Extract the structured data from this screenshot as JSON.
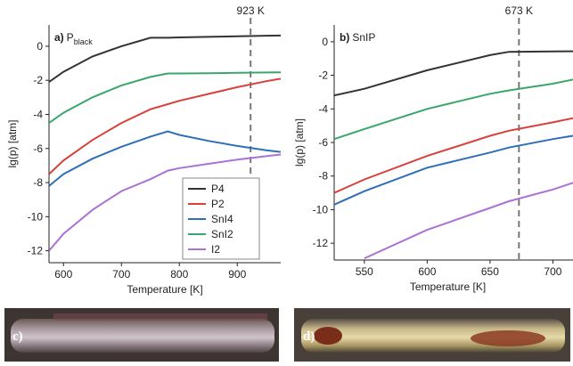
{
  "chart_data": [
    {
      "type": "line",
      "panel_label": "a)",
      "title": "P",
      "title_sub": "black",
      "x": [
        575,
        600,
        650,
        700,
        750,
        780,
        800,
        850,
        900,
        950,
        975
      ],
      "series": [
        {
          "name": "P4",
          "color": "#333333",
          "values": [
            -2.1,
            -1.5,
            -0.6,
            0.0,
            0.5,
            0.5,
            0.52,
            0.55,
            0.58,
            0.62,
            0.63
          ]
        },
        {
          "name": "P2",
          "color": "#d9403a",
          "values": [
            -7.5,
            -6.7,
            -5.5,
            -4.5,
            -3.7,
            -3.4,
            -3.2,
            -2.8,
            -2.4,
            -2.05,
            -1.9
          ]
        },
        {
          "name": "SnI4",
          "color": "#2e6fb7",
          "values": [
            -8.2,
            -7.5,
            -6.6,
            -5.9,
            -5.3,
            -5.0,
            -5.2,
            -5.55,
            -5.85,
            -6.1,
            -6.2
          ]
        },
        {
          "name": "SnI2",
          "color": "#3aa66a",
          "values": [
            -4.5,
            -3.9,
            -3.0,
            -2.3,
            -1.8,
            -1.6,
            -1.6,
            -1.58,
            -1.56,
            -1.54,
            -1.53
          ]
        },
        {
          "name": "I2",
          "color": "#a972d4",
          "values": [
            -12.0,
            -11.0,
            -9.6,
            -8.5,
            -7.8,
            -7.3,
            -7.15,
            -6.9,
            -6.65,
            -6.45,
            -6.35
          ]
        }
      ],
      "xlim": [
        575,
        975
      ],
      "ylim": [
        -12.7,
        1.25
      ],
      "xticks": [
        600,
        700,
        800,
        900
      ],
      "yticks": [
        0,
        -2,
        -4,
        -6,
        -8,
        -10,
        -12
      ],
      "x_label": "Temperature [K]",
      "y_label": "lg(p) [atm]",
      "vline": 923,
      "vline_label": "923 K",
      "legend": true
    },
    {
      "type": "line",
      "panel_label": "b)",
      "title": "SnIP",
      "x": [
        526,
        550,
        600,
        650,
        665,
        700,
        716
      ],
      "series": [
        {
          "name": "P4",
          "color": "#333333",
          "values": [
            -3.2,
            -2.8,
            -1.7,
            -0.8,
            -0.6,
            -0.58,
            -0.57
          ]
        },
        {
          "name": "P2",
          "color": "#d9403a",
          "values": [
            -9.0,
            -8.2,
            -6.8,
            -5.6,
            -5.3,
            -4.8,
            -4.55
          ]
        },
        {
          "name": "SnI4",
          "color": "#2e6fb7",
          "values": [
            -9.7,
            -8.9,
            -7.5,
            -6.6,
            -6.3,
            -5.8,
            -5.6
          ]
        },
        {
          "name": "SnI2",
          "color": "#3aa66a",
          "values": [
            -5.8,
            -5.2,
            -4.0,
            -3.1,
            -2.9,
            -2.5,
            -2.25
          ]
        },
        {
          "name": "I2",
          "color": "#a972d4",
          "values": [
            null,
            -12.9,
            -11.2,
            -9.9,
            -9.5,
            -8.8,
            -8.4
          ]
        }
      ],
      "xlim": [
        526,
        716
      ],
      "ylim": [
        -13,
        1
      ],
      "xticks": [
        550,
        600,
        650,
        700
      ],
      "yticks": [
        0,
        -2,
        -4,
        -6,
        -8,
        -10,
        -12
      ],
      "x_label": "Temperature [K]",
      "y_label": "lg(p) [atm]",
      "vline": 673,
      "vline_label": "673 K",
      "legend": false
    }
  ],
  "images": [
    {
      "label": "c)"
    },
    {
      "label": "d)"
    }
  ]
}
